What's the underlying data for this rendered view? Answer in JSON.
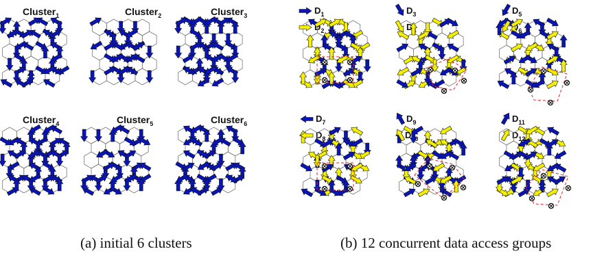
{
  "colors": {
    "grid_line": "#777777",
    "arrow_blue": "#0a15b5",
    "arrow_yellow": "#f4f000",
    "arrow_outline": "#111111",
    "group_dash": "#e8202a",
    "node_mark": "#111111"
  },
  "panel_a": {
    "caption": "(a) initial 6 clusters",
    "clusters": [
      {
        "name": "Cluster",
        "index": "1"
      },
      {
        "name": "Cluster",
        "index": "2"
      },
      {
        "name": "Cluster",
        "index": "3"
      },
      {
        "name": "Cluster",
        "index": "4"
      },
      {
        "name": "Cluster",
        "index": "5"
      },
      {
        "name": "Cluster",
        "index": "6"
      }
    ]
  },
  "panel_b": {
    "caption": "(b) 12 concurrent data access groups",
    "groups": [
      {
        "name": "D",
        "index": "1",
        "arrow": "right",
        "color": "blue"
      },
      {
        "name": "D",
        "index": "2",
        "arrow": "right",
        "color": "yellow"
      },
      {
        "name": "D",
        "index": "3",
        "arrow": "down-right",
        "color": "blue"
      },
      {
        "name": "D",
        "index": "4",
        "arrow": "down-right",
        "color": "yellow"
      },
      {
        "name": "D",
        "index": "5",
        "arrow": "down-left",
        "color": "blue"
      },
      {
        "name": "D",
        "index": "6",
        "arrow": "down-left",
        "color": "yellow"
      },
      {
        "name": "D",
        "index": "7",
        "arrow": "left",
        "color": "blue"
      },
      {
        "name": "D",
        "index": "8",
        "arrow": "left",
        "color": "yellow"
      },
      {
        "name": "D",
        "index": "9",
        "arrow": "up-left",
        "color": "blue"
      },
      {
        "name": "D",
        "index": "10",
        "arrow": "up-left",
        "color": "yellow"
      },
      {
        "name": "D",
        "index": "11",
        "arrow": "up-right",
        "color": "blue"
      },
      {
        "name": "D",
        "index": "12",
        "arrow": "up-right",
        "color": "yellow"
      }
    ]
  }
}
